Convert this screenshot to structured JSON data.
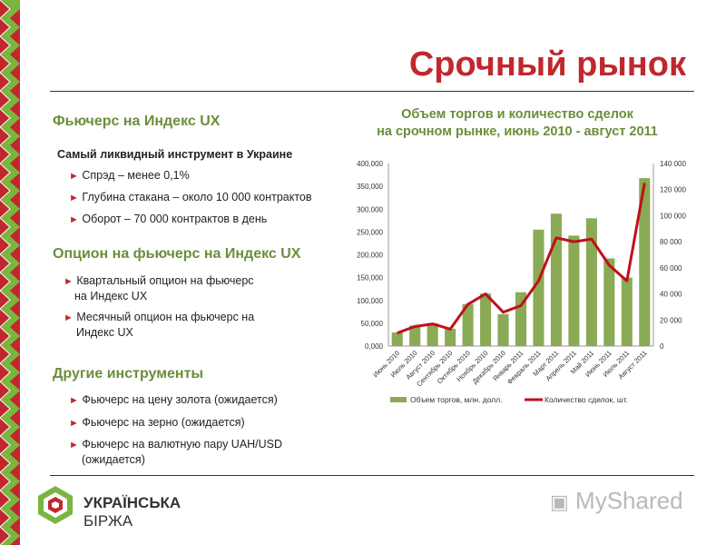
{
  "slide": {
    "title": "Срочный рынок",
    "section1": {
      "heading": "Фьючерс на Индекс UX",
      "subheading": "Самый ликвидный инструмент в Украине",
      "bullets": [
        "Спрэд – менее 0,1%",
        "Глубина стакана – около 10 000 контрактов",
        "Оборот – 70 000 контрактов в день"
      ]
    },
    "section2": {
      "heading": "Опцион на фьючерс на Индекс UX",
      "bullets": [
        {
          "line1": "Квартальный опцион на фьючерс",
          "line2": "на Индекс UX"
        },
        {
          "line1": "Месячный опцион на фьючерс на",
          "line2": "Индекс UX"
        }
      ]
    },
    "section3": {
      "heading": "Другие инструменты",
      "bullets": [
        {
          "line1": "Фьючерс на цену золота (ожидается)",
          "line2": ""
        },
        {
          "line1": "Фьючерс на зерно (ожидается)",
          "line2": ""
        },
        {
          "line1": "Фьючерс на валютную пару UAH/USD",
          "line2": "(ожидается)"
        }
      ]
    },
    "bullet_marker": "►",
    "logo": {
      "line1": "УКРАЇНСЬКА",
      "line2": "БІРЖА"
    },
    "watermark": "MyShared",
    "colors": {
      "title": "#c0282d",
      "heading": "#6b8e3a",
      "bar": "#8aaa55",
      "line": "#c0101a",
      "border_green": "#7bb53f",
      "border_red": "#c0282d"
    }
  },
  "chart_data": {
    "type": "bar",
    "title_line1": "Объем торгов и количество сделок",
    "title_line2": "на срочном рынке, июнь 2010 - август 2011",
    "categories": [
      "Июнь 2010",
      "Июль 2010",
      "Август 2010",
      "Сентябрь 2010",
      "Октябрь 2010",
      "Ноябрь 2010",
      "Декабрь 2010",
      "Январь 2011",
      "Февраль 2011",
      "Март 2011",
      "Апрель 2011",
      "Май 2011",
      "Июнь 2011",
      "Июль 2011",
      "Август 2011"
    ],
    "series": [
      {
        "name": "Объем торгов, млн. долл.",
        "type": "bar",
        "axis": "left",
        "values": [
          30000,
          45000,
          50000,
          38000,
          92000,
          115000,
          70000,
          118000,
          255000,
          290000,
          242000,
          280000,
          192000,
          150000,
          368000
        ]
      },
      {
        "name": "Количество сделок, шт.",
        "type": "line",
        "axis": "right",
        "values": [
          10000,
          15000,
          17000,
          13000,
          32000,
          40000,
          26000,
          31000,
          50000,
          83000,
          80000,
          82000,
          62000,
          50000,
          125000
        ]
      }
    ],
    "y_left": {
      "min": 0,
      "max": 400000,
      "ticks": [
        "0,000",
        "50,000",
        "100,000",
        "150,000",
        "200,000",
        "250,000",
        "300,000",
        "350,000",
        "400,000"
      ]
    },
    "y_right": {
      "min": 0,
      "max": 140000,
      "ticks": [
        "0",
        "20 000",
        "40 000",
        "60 000",
        "80 000",
        "100 000",
        "120 000",
        "140 000"
      ]
    },
    "grid": false,
    "legend": "bottom"
  }
}
